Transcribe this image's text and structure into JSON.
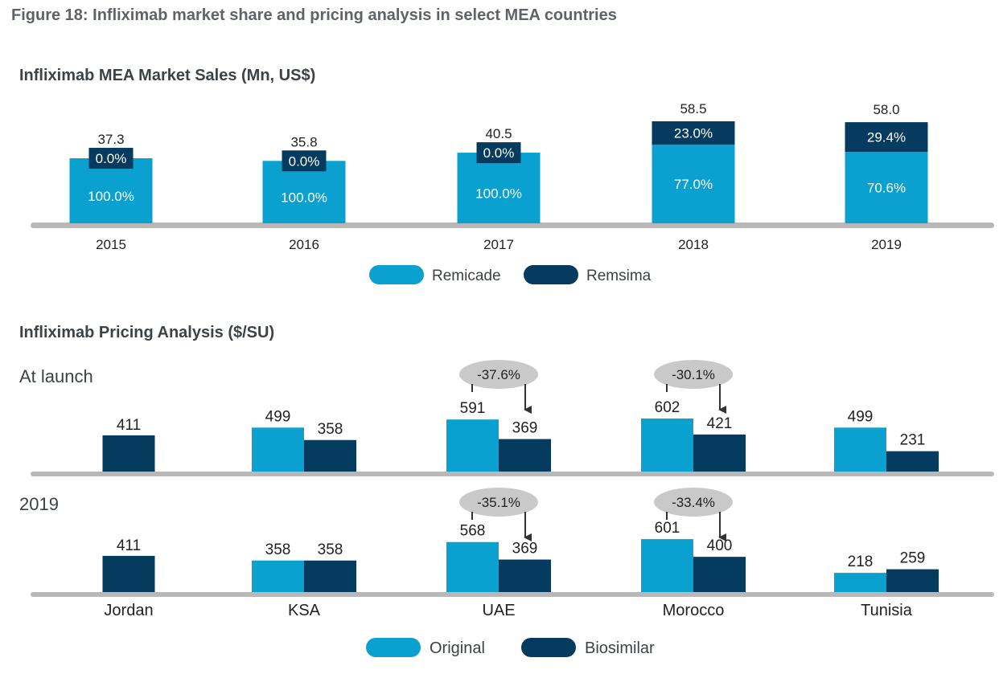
{
  "figure_title": "Figure 18: Infliximab market share and pricing analysis in select MEA countries",
  "colors": {
    "remicade": "#0aa0cf",
    "remsima": "#053b5e",
    "axis": "#b8b8b8",
    "callout": "#c9c9c9",
    "text": "#222222",
    "title_text": "#3d4246",
    "white": "#ffffff"
  },
  "chart_data": [
    {
      "type": "bar",
      "stacked": true,
      "title": "Infliximab MEA Market Sales (Mn, US$)",
      "categories": [
        "2015",
        "2016",
        "2017",
        "2018",
        "2019"
      ],
      "totals": [
        37.3,
        35.8,
        40.5,
        58.5,
        58.0
      ],
      "total_labels": [
        "37.3",
        "35.8",
        "40.5",
        "58.5",
        "58.0"
      ],
      "series": [
        {
          "name": "Remicade",
          "share_labels": [
            "100.0%",
            "100.0%",
            "100.0%",
            "77.0%",
            "70.6%"
          ],
          "shares": [
            100.0,
            100.0,
            100.0,
            77.0,
            70.6
          ]
        },
        {
          "name": "Remsima",
          "share_labels": [
            "0.0%",
            "0.0%",
            "0.0%",
            "23.0%",
            "29.4%"
          ],
          "shares": [
            0.0,
            0.0,
            0.0,
            23.0,
            29.4
          ]
        }
      ],
      "legend": [
        "Remicade",
        "Remsima"
      ],
      "legend_position": "bottom"
    },
    {
      "type": "bar",
      "grouped": true,
      "title": "Infliximab Pricing Analysis ($/SU)",
      "categories": [
        "Jordan",
        "KSA",
        "UAE",
        "Morocco",
        "Tunisia"
      ],
      "panels": [
        {
          "label": "At launch",
          "original": [
            null,
            499,
            591,
            602,
            499
          ],
          "biosimilar": [
            411,
            358,
            369,
            421,
            231
          ],
          "callouts": [
            {
              "category": "UAE",
              "text": "-37.6%"
            },
            {
              "category": "Morocco",
              "text": "-30.1%"
            }
          ]
        },
        {
          "label": "2019",
          "original": [
            null,
            358,
            568,
            601,
            218
          ],
          "biosimilar": [
            411,
            358,
            369,
            400,
            259
          ],
          "callouts": [
            {
              "category": "UAE",
              "text": "-35.1%"
            },
            {
              "category": "Morocco",
              "text": "-33.4%"
            }
          ]
        }
      ],
      "legend": [
        "Original",
        "Biosimilar"
      ],
      "legend_position": "bottom"
    }
  ]
}
